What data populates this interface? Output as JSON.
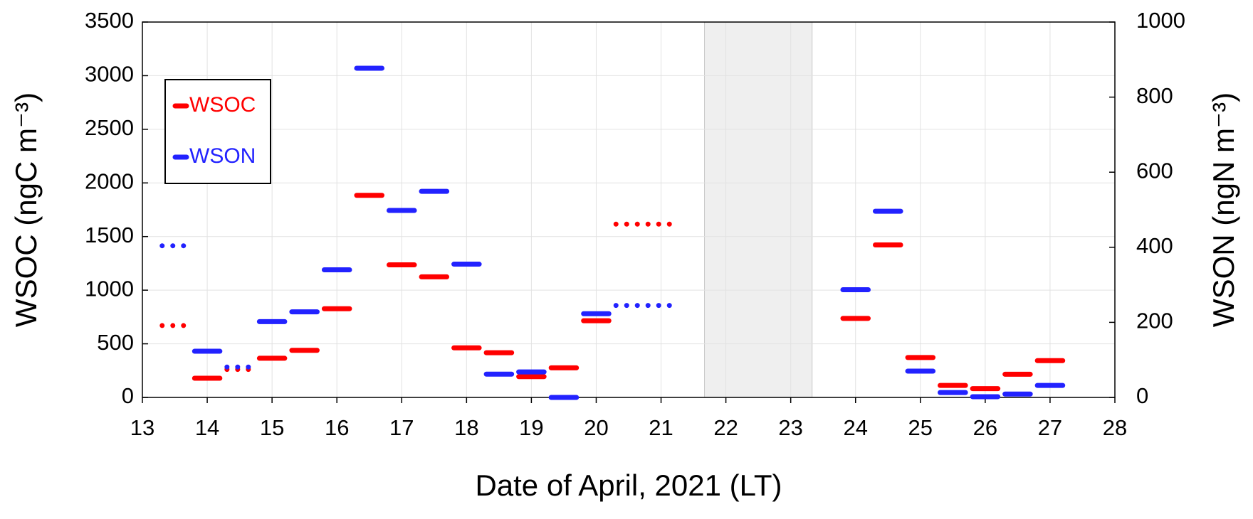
{
  "chart_data": {
    "type": "segment",
    "xlabel": "Date of April, 2021 (LT)",
    "ylabel": "WSOC (ngC m⁻³)",
    "y2label": "WSON (ngN m⁻³)",
    "xlim": [
      13,
      28
    ],
    "xticks": [
      13,
      14,
      15,
      16,
      17,
      18,
      19,
      20,
      21,
      22,
      23,
      24,
      25,
      26,
      27,
      28
    ],
    "ylim": [
      0,
      3500
    ],
    "yticks": [
      0,
      500,
      1000,
      1500,
      2000,
      2500,
      3000,
      3500
    ],
    "y2lim": [
      0,
      1000
    ],
    "y2ticks": [
      0,
      200,
      400,
      600,
      800,
      1000
    ],
    "grid": true,
    "legend": "upper left",
    "shaded_x": [
      21.67,
      23.33
    ],
    "x_start": [
      13.25,
      13.75,
      14.25,
      14.75,
      15.25,
      15.75,
      16.25,
      16.75,
      17.25,
      17.75,
      18.25,
      18.75,
      19.25,
      19.75,
      20.25,
      23.75,
      24.25,
      24.75,
      25.25,
      25.75,
      26.25,
      26.75
    ],
    "x_end": [
      13.75,
      14.25,
      14.75,
      15.25,
      15.75,
      16.25,
      16.75,
      17.25,
      17.75,
      18.25,
      18.75,
      19.25,
      19.75,
      20.25,
      21.25,
      24.25,
      24.75,
      25.25,
      25.75,
      26.25,
      26.75,
      27.25
    ],
    "dotted": [
      true,
      false,
      true,
      false,
      false,
      false,
      false,
      false,
      false,
      false,
      false,
      false,
      false,
      false,
      true,
      false,
      false,
      false,
      false,
      false,
      false,
      false
    ],
    "series": [
      {
        "name": "WSOC",
        "color": "#ff0000",
        "axis": "y",
        "values": [
          670,
          179,
          261,
          365,
          439,
          827,
          1884,
          1236,
          1124,
          462,
          417,
          194,
          276,
          715,
          1616,
          737,
          1422,
          372,
          112,
          82,
          216,
          343
        ]
      },
      {
        "name": "WSON",
        "color": "#2222ff",
        "axis": "y2",
        "values": [
          404,
          123,
          81,
          202,
          228,
          340,
          877,
          498,
          549,
          355,
          62,
          68,
          0,
          223,
          245,
          287,
          496,
          70,
          13,
          2,
          9,
          32
        ]
      }
    ]
  }
}
